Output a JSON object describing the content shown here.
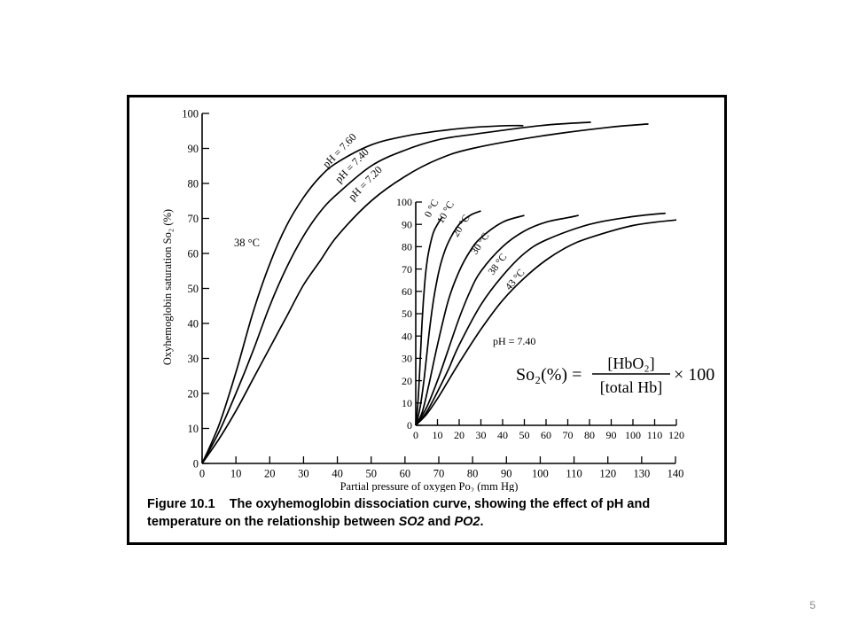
{
  "caption": {
    "fig_label": "Figure 10.1",
    "text_1": "The oxyhemoglobin dissociation curve, showing the effect of pH and temperature on the relationship between ",
    "so2": "SO2",
    "and": " and ",
    "po2": "PO2",
    "period": "."
  },
  "slide_number": "5",
  "equation": {
    "lhs": "So₂(%) =",
    "numerator": "[HbO₂]",
    "denominator": "[total Hb]",
    "rhs": "× 100"
  },
  "chart_data": [
    {
      "type": "line",
      "xlabel": "Partial pressure of oxygen Po₂ (mm Hg)",
      "ylabel": "Oxyhemoglobin saturation So₂ (%)",
      "xlim": [
        0,
        140
      ],
      "ylim": [
        0,
        100
      ],
      "xticks": [
        0,
        10,
        20,
        30,
        40,
        50,
        60,
        70,
        80,
        90,
        100,
        110,
        120,
        130,
        140
      ],
      "yticks": [
        0,
        10,
        20,
        30,
        40,
        50,
        60,
        70,
        80,
        90,
        100
      ],
      "annotation": "38 °C",
      "series": [
        {
          "name": "pH = 7.60",
          "x": [
            0,
            5,
            10,
            15,
            20,
            25,
            30,
            35,
            40,
            50,
            60,
            70,
            80,
            90,
            95
          ],
          "y": [
            0,
            11,
            26,
            43,
            57,
            68,
            76,
            82,
            86,
            91,
            93.5,
            95,
            96,
            96.5,
            96.5
          ]
        },
        {
          "name": "pH = 7.40",
          "x": [
            0,
            5,
            10,
            15,
            20,
            25,
            30,
            35,
            40,
            50,
            60,
            70,
            80,
            100,
            115
          ],
          "y": [
            0,
            9,
            20,
            32,
            45,
            56,
            65,
            72,
            77,
            85,
            89.5,
            92.5,
            94,
            96.5,
            97.5
          ]
        },
        {
          "name": "pH = 7.20",
          "x": [
            0,
            5,
            10,
            15,
            20,
            25,
            30,
            35,
            40,
            50,
            60,
            70,
            80,
            100,
            120,
            132
          ],
          "y": [
            0,
            7,
            15,
            24,
            33,
            42,
            51,
            58,
            65,
            75,
            82,
            87,
            90,
            93.5,
            96,
            97
          ]
        }
      ]
    },
    {
      "type": "line",
      "xlim": [
        0,
        120
      ],
      "ylim": [
        0,
        100
      ],
      "xticks": [
        0,
        10,
        20,
        30,
        40,
        50,
        60,
        70,
        80,
        90,
        100,
        110,
        120
      ],
      "yticks": [
        0,
        10,
        20,
        30,
        40,
        50,
        60,
        70,
        80,
        90,
        100
      ],
      "annotation": "pH = 7.40",
      "series": [
        {
          "name": "0 °C",
          "x": [
            0,
            1,
            2,
            3,
            4,
            5,
            6,
            8,
            10,
            12
          ],
          "y": [
            0,
            10,
            28,
            48,
            62,
            72,
            78,
            86,
            90,
            93
          ]
        },
        {
          "name": "10 °C",
          "x": [
            0,
            2,
            4,
            6,
            8,
            10,
            12,
            15,
            20,
            25,
            30
          ],
          "y": [
            0,
            8,
            22,
            40,
            55,
            66,
            74,
            82,
            90,
            94,
            96
          ]
        },
        {
          "name": "20 °C",
          "x": [
            0,
            3,
            6,
            10,
            15,
            20,
            25,
            30,
            40,
            50
          ],
          "y": [
            0,
            6,
            18,
            36,
            56,
            69,
            78,
            84,
            91,
            94
          ]
        },
        {
          "name": "30 °C",
          "x": [
            0,
            5,
            10,
            15,
            20,
            25,
            30,
            40,
            50,
            60,
            70,
            75
          ],
          "y": [
            0,
            8,
            20,
            34,
            48,
            60,
            69,
            80,
            87,
            91,
            93,
            94
          ]
        },
        {
          "name": "38 °C",
          "x": [
            0,
            5,
            10,
            15,
            20,
            30,
            40,
            50,
            60,
            80,
            100,
            115
          ],
          "y": [
            0,
            6,
            15,
            25,
            36,
            54,
            67,
            77,
            83,
            90,
            93.5,
            95
          ]
        },
        {
          "name": "43 °C",
          "x": [
            0,
            5,
            10,
            15,
            20,
            30,
            40,
            50,
            60,
            70,
            80,
            100,
            120
          ],
          "y": [
            0,
            5,
            12,
            20,
            28,
            43,
            56,
            66,
            74,
            80,
            84,
            89.5,
            92
          ]
        }
      ]
    }
  ]
}
